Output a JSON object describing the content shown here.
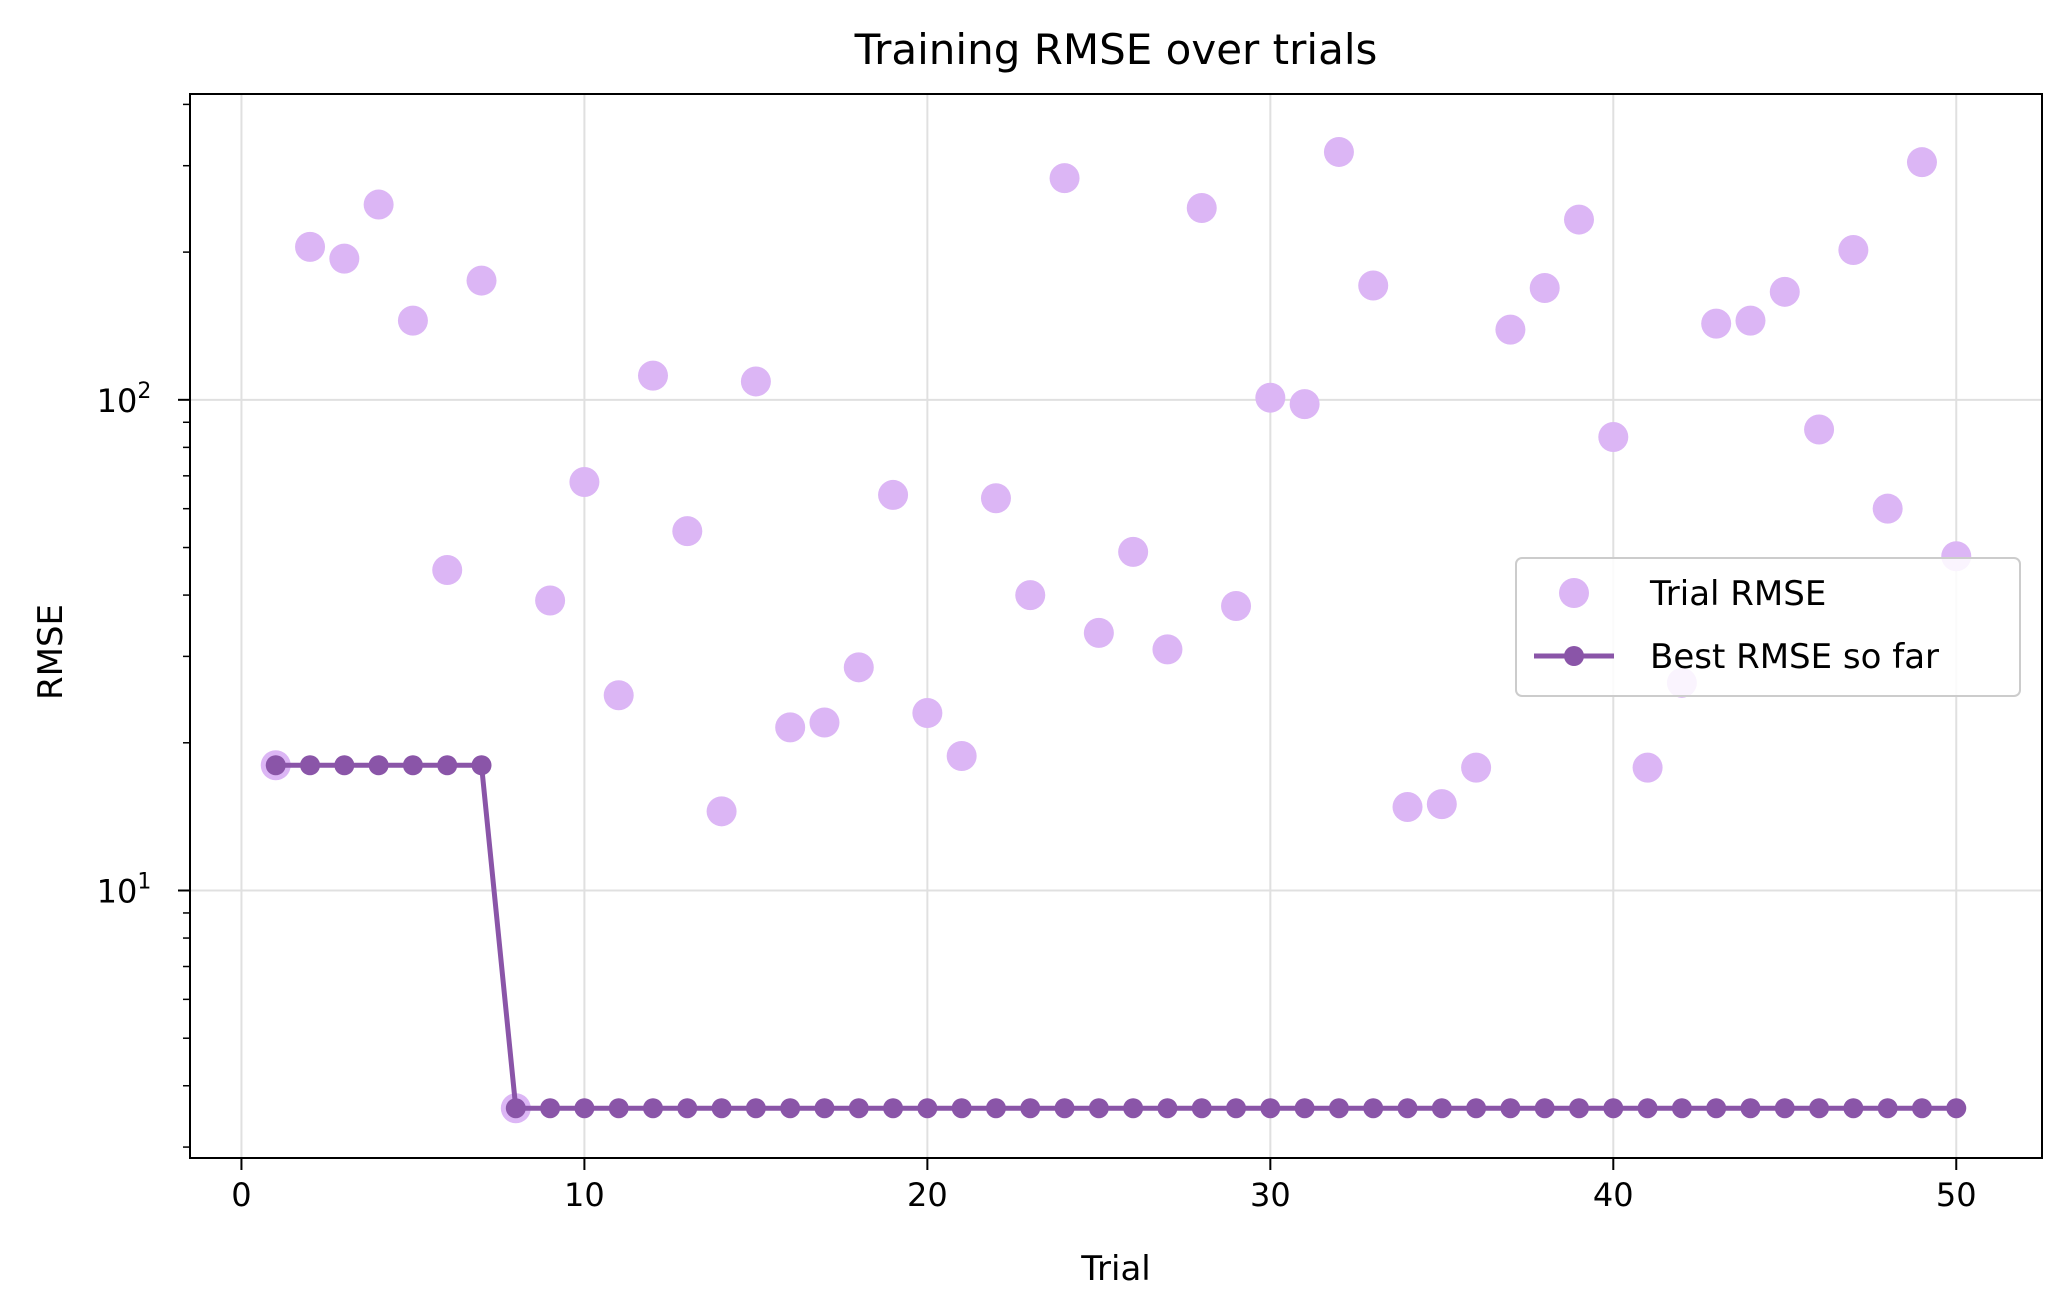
{
  "chart_data": {
    "type": "scatter",
    "title": "Training RMSE over trials",
    "xlabel": "Trial",
    "ylabel": "RMSE",
    "xlim": [
      -1.5,
      52.5
    ],
    "ylim": [
      2.85,
      420
    ],
    "yscale": "log",
    "grid": true,
    "legend_position": "center-right",
    "x_ticks": [
      0,
      10,
      20,
      30,
      40,
      50
    ],
    "x_tick_labels": [
      "0",
      "10",
      "20",
      "30",
      "40",
      "50"
    ],
    "y_major_ticks": [
      10,
      100
    ],
    "y_tick_labels": [
      {
        "base": "10",
        "exp": "1"
      },
      {
        "base": "10",
        "exp": "2"
      }
    ],
    "x": [
      1,
      2,
      3,
      4,
      5,
      6,
      7,
      8,
      9,
      10,
      11,
      12,
      13,
      14,
      15,
      16,
      17,
      18,
      19,
      20,
      21,
      22,
      23,
      24,
      25,
      26,
      27,
      28,
      29,
      30,
      31,
      32,
      33,
      34,
      35,
      36,
      37,
      38,
      39,
      40,
      41,
      42,
      43,
      44,
      45,
      46,
      47,
      48,
      49,
      50
    ],
    "series": [
      {
        "name": "Trial RMSE",
        "color": "#dcb6f5",
        "style": "markers",
        "values": [
          18,
          205,
          194,
          250,
          145,
          45,
          175,
          3.6,
          39,
          68,
          25,
          112,
          54,
          14.5,
          109,
          21.5,
          22,
          28.5,
          64,
          23,
          18.8,
          63,
          40,
          283,
          33.5,
          49,
          31,
          246,
          38,
          101,
          98,
          320,
          171,
          14.8,
          15,
          17.8,
          139,
          169,
          233,
          84,
          17.8,
          26.5,
          143,
          145,
          166,
          87,
          202,
          60,
          305,
          48
        ]
      },
      {
        "name": "Best RMSE so far",
        "color": "#8a55a8",
        "style": "line-markers",
        "values": [
          18,
          18,
          18,
          18,
          18,
          18,
          18,
          3.6,
          3.6,
          3.6,
          3.6,
          3.6,
          3.6,
          3.6,
          3.6,
          3.6,
          3.6,
          3.6,
          3.6,
          3.6,
          3.6,
          3.6,
          3.6,
          3.6,
          3.6,
          3.6,
          3.6,
          3.6,
          3.6,
          3.6,
          3.6,
          3.6,
          3.6,
          3.6,
          3.6,
          3.6,
          3.6,
          3.6,
          3.6,
          3.6,
          3.6,
          3.6,
          3.6,
          3.6,
          3.6,
          3.6,
          3.6,
          3.6,
          3.6,
          3.6
        ]
      }
    ]
  }
}
